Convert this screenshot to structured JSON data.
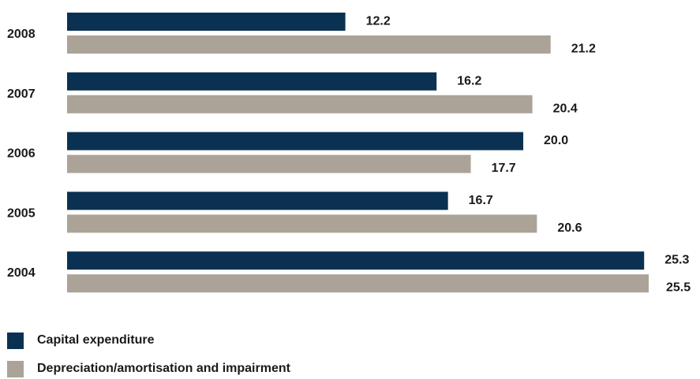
{
  "chart_data": {
    "type": "bar",
    "orientation": "horizontal",
    "categories": [
      "2008",
      "2007",
      "2006",
      "2005",
      "2004"
    ],
    "series": [
      {
        "name": "Capital expenditure",
        "color": "#0a3152",
        "values": [
          12.2,
          16.2,
          20.0,
          16.7,
          25.3
        ],
        "labels": [
          "12.2",
          "16.2",
          "20.0",
          "16.7",
          "25.3"
        ]
      },
      {
        "name": "Depreciation/amortisation and impairment",
        "color": "#aba397",
        "values": [
          21.2,
          20.4,
          17.7,
          20.6,
          25.5
        ],
        "labels": [
          "21.2",
          "20.4",
          "17.7",
          "20.6",
          "25.5"
        ]
      }
    ],
    "xlim": [
      0,
      25.5
    ],
    "grid": false,
    "legend_position": "bottom-left"
  }
}
